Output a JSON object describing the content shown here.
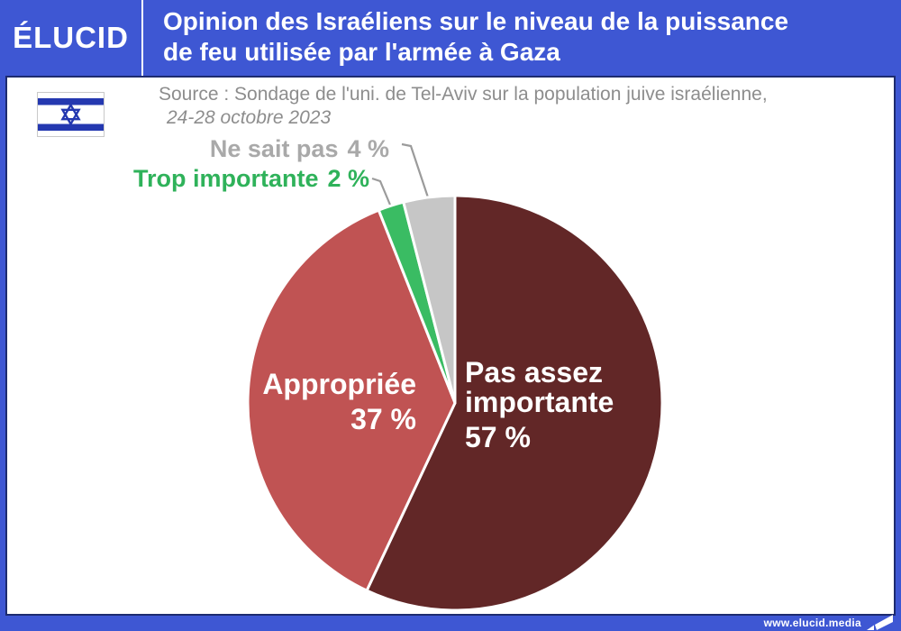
{
  "header": {
    "logo": "ÉLUCID",
    "title_line1": "Opinion des Israéliens sur le niveau de la puissance",
    "title_line2": "de feu utilisée par l'armée à Gaza"
  },
  "source": {
    "line1": "Source : Sondage de l'uni. de Tel-Aviv sur la population juive israélienne,",
    "line2": "24-28 octobre 2023"
  },
  "footer": {
    "url": "www.elucid.media"
  },
  "colors": {
    "frame_blue": "#3e57d3",
    "border_navy": "#1d2b6f",
    "maroon": "#622727",
    "red": "#c05353",
    "green": "#3abc63",
    "gray_slice": "#c6c6c6",
    "gray_text": "#a9a9a9",
    "green_text": "#2fb25a",
    "source_gray": "#8d8d8d",
    "flag_blue": "#2438b0"
  },
  "chart_data": {
    "type": "pie",
    "title": "Opinion des Israéliens sur le niveau de la puissance de feu utilisée par l'armée à Gaza",
    "start_angle_deg": 0,
    "direction": "clockwise",
    "legend_position": "labels-on-and-around-pie",
    "categories": [
      "Pas assez importante",
      "Appropriée",
      "Trop importante",
      "Ne sait pas"
    ],
    "values": [
      57,
      37,
      2,
      4
    ],
    "slices": [
      {
        "id": "pas-assez-importante",
        "label": "Pas assez importante",
        "label_line1": "Pas assez",
        "label_line2": "importante",
        "value": 57,
        "pct_label": "57 %",
        "color": "#622727"
      },
      {
        "id": "appropriee",
        "label": "Appropriée",
        "value": 37,
        "pct_label": "37 %",
        "color": "#c05353"
      },
      {
        "id": "trop-importante",
        "label": "Trop importante",
        "value": 2,
        "pct_label": "2 %",
        "color": "#3abc63"
      },
      {
        "id": "ne-sait-pas",
        "label": "Ne sait pas",
        "value": 4,
        "pct_label": "4 %",
        "color": "#c6c6c6"
      }
    ]
  }
}
